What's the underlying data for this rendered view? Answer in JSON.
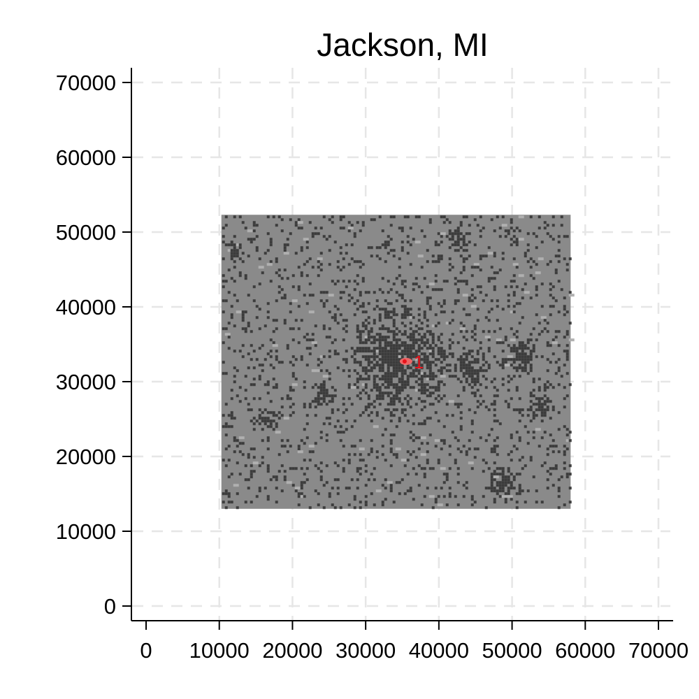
{
  "chart_data": {
    "type": "heatmap",
    "title": "Jackson, MI",
    "xlabel": "",
    "ylabel": "",
    "xlim": [
      -2000,
      72000
    ],
    "ylim": [
      -2000,
      72000
    ],
    "x_ticks": [
      0,
      10000,
      20000,
      30000,
      40000,
      50000,
      60000,
      70000
    ],
    "y_ticks": [
      0,
      10000,
      20000,
      30000,
      40000,
      50000,
      60000,
      70000
    ],
    "x_tick_labels": [
      "0",
      "10000",
      "20000",
      "30000",
      "40000",
      "50000",
      "60000",
      "70000"
    ],
    "y_tick_labels": [
      "0",
      "10000",
      "20000",
      "30000",
      "40000",
      "50000",
      "60000",
      "70000"
    ],
    "grid": true,
    "raster_extent": {
      "x": [
        10000,
        58000
      ],
      "y": [
        13000,
        52500
      ]
    },
    "cell_classes": [
      {
        "name": "background",
        "color": "#8a8a8a"
      },
      {
        "name": "developed",
        "color": "#3c3c3c"
      },
      {
        "name": "light",
        "color": "#b0b0b0"
      }
    ],
    "dense_clusters": [
      {
        "x": 34500,
        "y": 33000,
        "radius": 5000
      },
      {
        "x": 48500,
        "y": 16500,
        "radius": 1500
      },
      {
        "x": 16000,
        "y": 25000,
        "radius": 1200
      },
      {
        "x": 24000,
        "y": 28500,
        "radius": 1200
      },
      {
        "x": 51000,
        "y": 33500,
        "radius": 1600
      },
      {
        "x": 44000,
        "y": 32000,
        "radius": 1800
      },
      {
        "x": 53500,
        "y": 27000,
        "radius": 1300
      },
      {
        "x": 42500,
        "y": 49500,
        "radius": 1200
      },
      {
        "x": 12000,
        "y": 47500,
        "radius": 1000
      }
    ],
    "marked_points": [
      {
        "label": "1",
        "x": 35800,
        "y": 32800,
        "color": "#ff6b6b"
      }
    ]
  }
}
